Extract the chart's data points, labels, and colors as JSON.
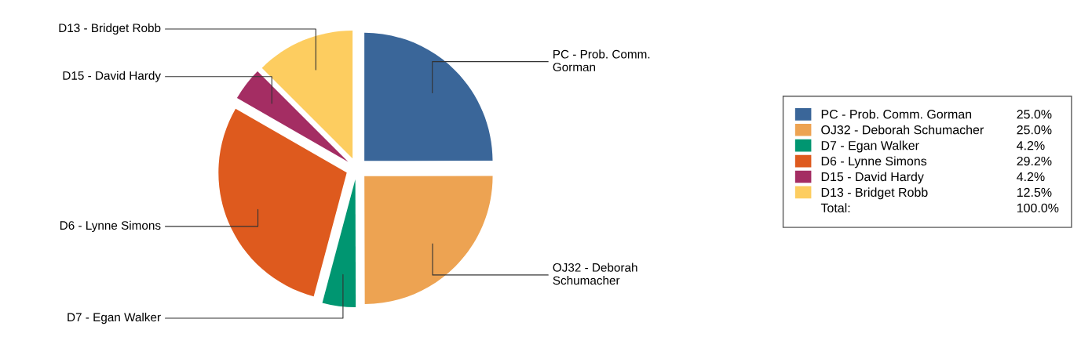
{
  "chart_data": {
    "type": "pie",
    "categories": [
      "PC - Prob. Comm. Gorman",
      "OJ32 - Deborah Schumacher",
      "D7 - Egan Walker",
      "D6 - Lynne Simons",
      "D15 - David Hardy",
      "D13 - Bridget Robb"
    ],
    "values": [
      25.0,
      25.0,
      4.2,
      29.2,
      4.2,
      12.5
    ],
    "value_labels": [
      "25.0%",
      "25.0%",
      "4.2%",
      "29.2%",
      "4.2%",
      "12.5%"
    ],
    "colors": [
      "#3a6699",
      "#eda352",
      "#009671",
      "#de5a1e",
      "#a42d63",
      "#fdcd60"
    ],
    "annotations": [
      "Total:",
      "100.0%"
    ],
    "legend": "right"
  }
}
